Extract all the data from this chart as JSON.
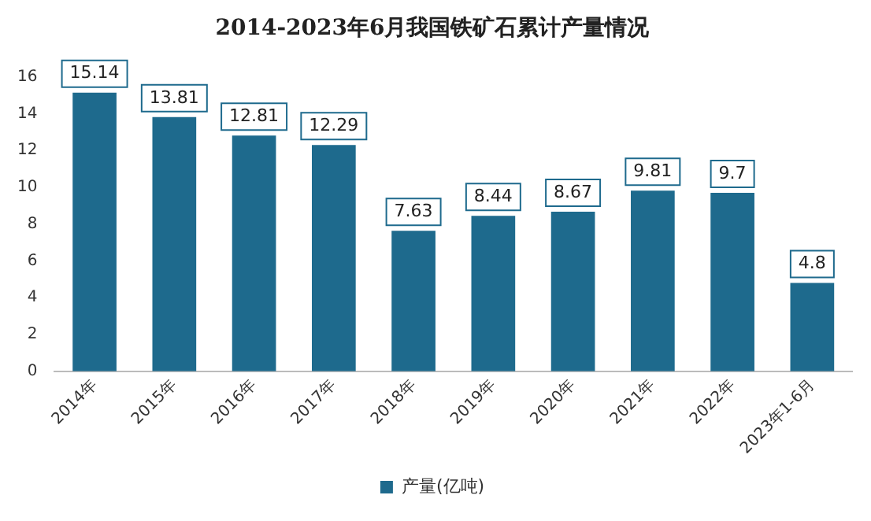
{
  "chart_data": {
    "type": "bar",
    "title": "2014-2023年6月我国铁矿石累计产量情况",
    "categories": [
      "2014年",
      "2015年",
      "2016年",
      "2017年",
      "2018年",
      "2019年",
      "2020年",
      "2021年",
      "2022年",
      "2023年1-6月"
    ],
    "series": [
      {
        "name": "产量(亿吨)",
        "color": "#1e6a8d",
        "values": [
          15.14,
          13.81,
          12.81,
          12.29,
          7.63,
          8.44,
          8.67,
          9.81,
          9.7,
          4.8
        ]
      }
    ],
    "ylim": [
      0,
      16
    ],
    "yticks": [
      0,
      2,
      4,
      6,
      8,
      10,
      12,
      14,
      16
    ],
    "grid": false,
    "legend": "bottom",
    "data_labels": true
  }
}
